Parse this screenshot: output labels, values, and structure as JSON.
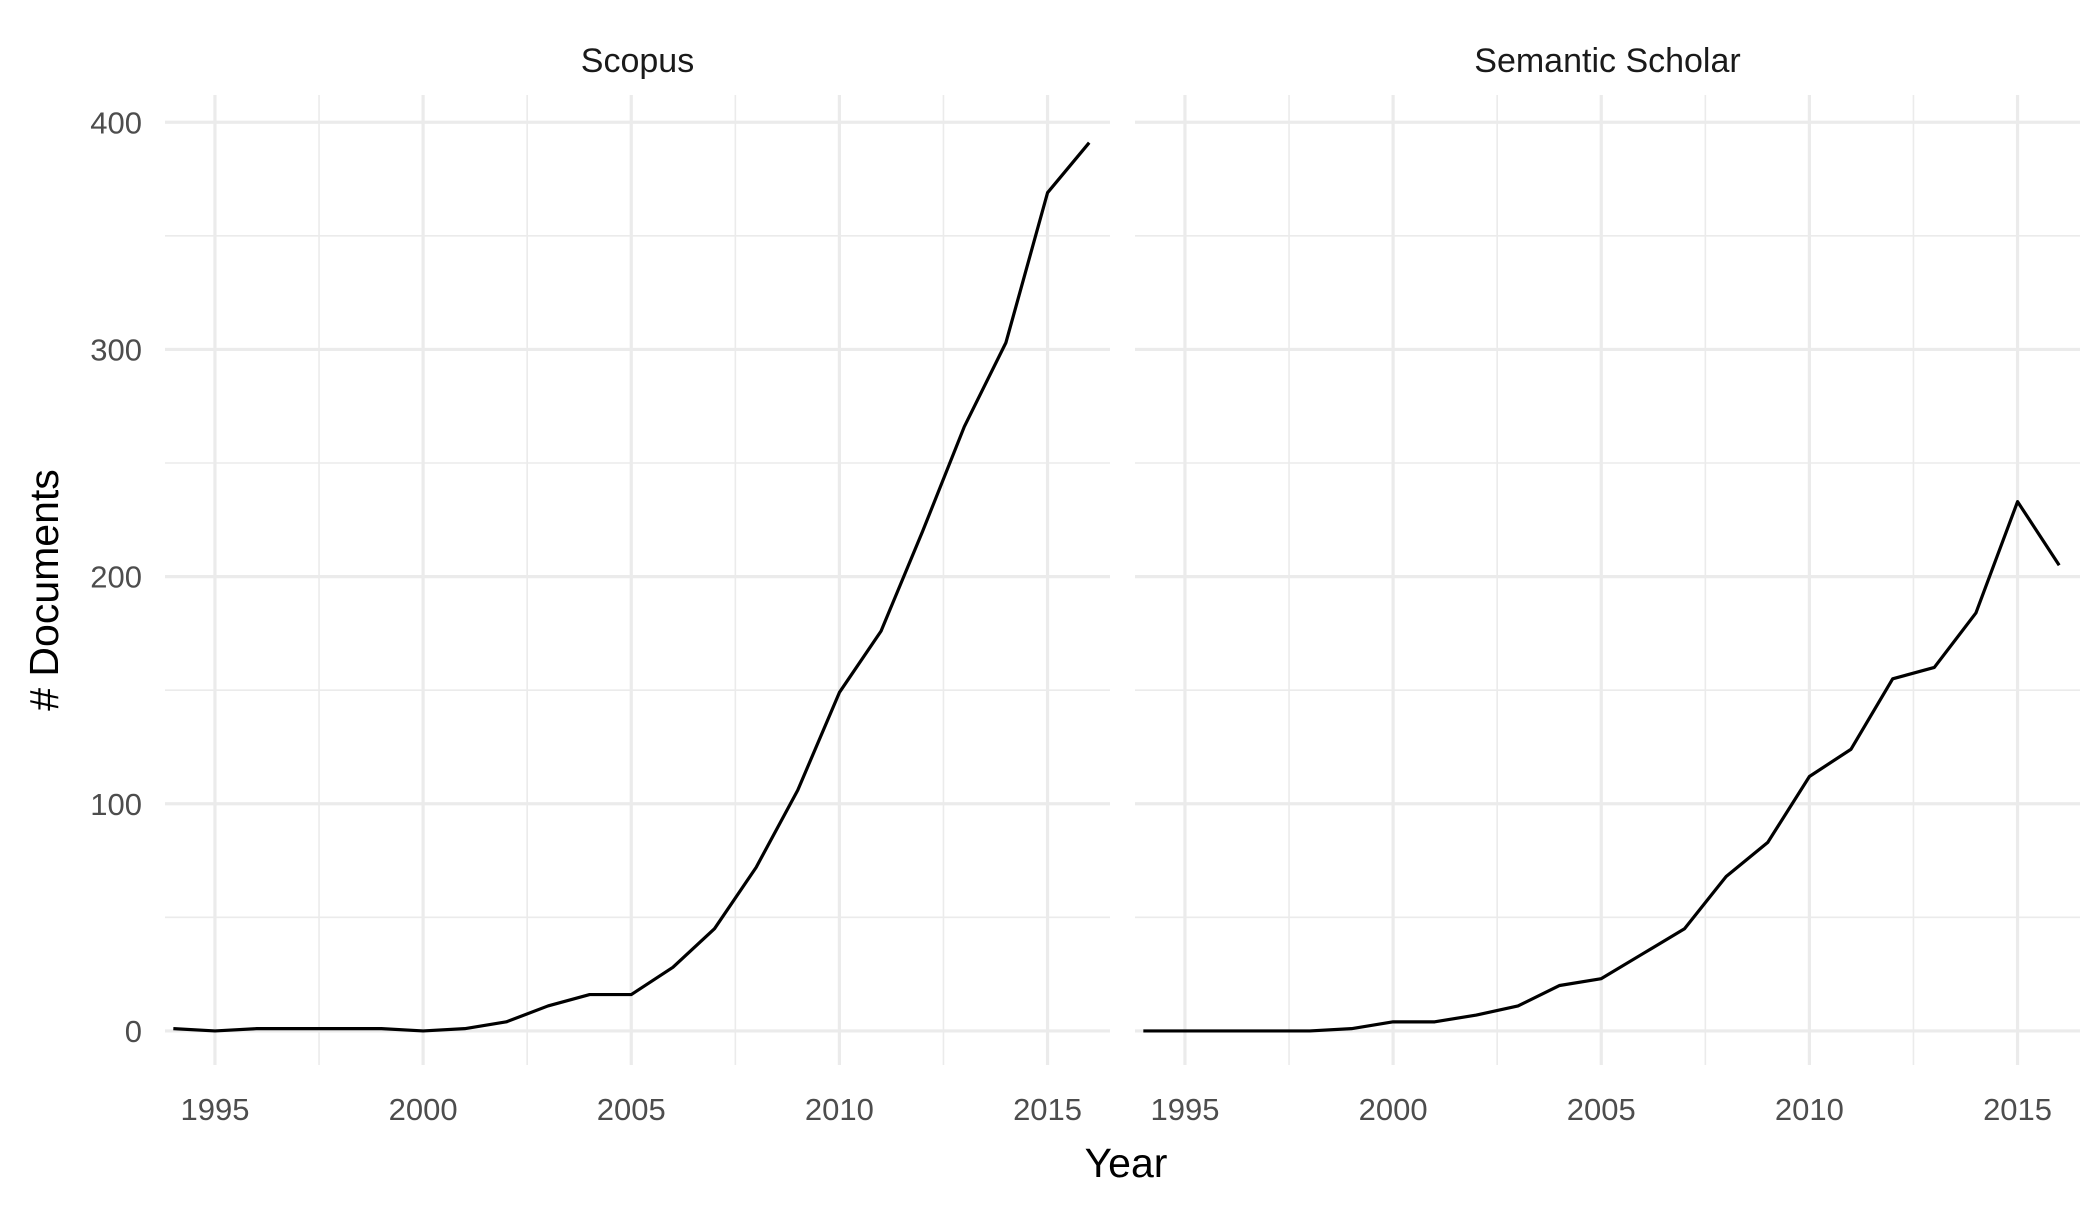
{
  "chart_data": {
    "type": "line",
    "xlabel": "Year",
    "ylabel": "# Documents",
    "xlim": [
      1993.8,
      2016.5
    ],
    "ylim": [
      -15,
      412
    ],
    "x_ticks": [
      1995,
      2000,
      2005,
      2010,
      2015
    ],
    "y_ticks": [
      0,
      100,
      200,
      300,
      400
    ],
    "grid": true,
    "legend": "none",
    "panels": [
      {
        "title": "Scopus",
        "x": [
          1994,
          1995,
          1996,
          1997,
          1998,
          1999,
          2000,
          2001,
          2002,
          2003,
          2004,
          2005,
          2006,
          2007,
          2008,
          2009,
          2010,
          2011,
          2012,
          2013,
          2014,
          2015,
          2016
        ],
        "y": [
          1,
          0,
          1,
          1,
          1,
          1,
          0,
          1,
          4,
          11,
          16,
          16,
          28,
          45,
          72,
          106,
          149,
          176,
          220,
          266,
          303,
          369,
          391
        ]
      },
      {
        "title": "Semantic Scholar",
        "x": [
          1994,
          1995,
          1996,
          1997,
          1998,
          1999,
          2000,
          2001,
          2002,
          2003,
          2004,
          2005,
          2006,
          2007,
          2008,
          2009,
          2010,
          2011,
          2012,
          2013,
          2014,
          2015,
          2016
        ],
        "y": [
          0,
          0,
          0,
          0,
          0,
          1,
          4,
          4,
          7,
          11,
          20,
          23,
          34,
          45,
          68,
          83,
          112,
          124,
          155,
          160,
          184,
          233,
          205
        ]
      }
    ]
  }
}
